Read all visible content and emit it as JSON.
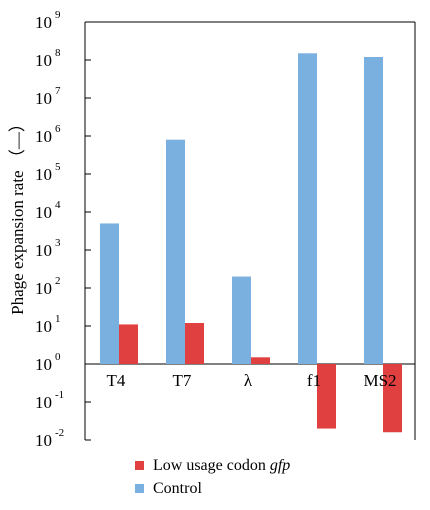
{
  "chart_data": {
    "type": "bar",
    "ylabel": "Phage expansion rate （—）",
    "yscale": "log10",
    "ylim": [
      0.01,
      1000000000
    ],
    "baseline": 1,
    "categories": [
      "T4",
      "T7",
      "λ",
      "f1",
      "MS2"
    ],
    "series": [
      {
        "name": "Control",
        "color": "#7ab0e0",
        "values": [
          5000,
          800000,
          200,
          150000000,
          120000000
        ]
      },
      {
        "name": "Low usage codon gfp",
        "color": "#e04040",
        "values": [
          11,
          12,
          1.5,
          0.02,
          0.016
        ]
      }
    ],
    "yticks": [
      {
        "base": "10",
        "exp": "9"
      },
      {
        "base": "10",
        "exp": "8"
      },
      {
        "base": "10",
        "exp": "7"
      },
      {
        "base": "10",
        "exp": "6"
      },
      {
        "base": "10",
        "exp": "5"
      },
      {
        "base": "10",
        "exp": "4"
      },
      {
        "base": "10",
        "exp": "3"
      },
      {
        "base": "10",
        "exp": "2"
      },
      {
        "base": "10",
        "exp": "1"
      },
      {
        "base": "10",
        "exp": "0"
      },
      {
        "base": "10",
        "exp": "-1"
      },
      {
        "base": "10",
        "exp": "-2"
      }
    ],
    "legend": {
      "placement": "bottom",
      "entries": [
        {
          "prefix": "Low usage codon ",
          "italic": "gfp",
          "color": "#e04040"
        },
        {
          "prefix": "Control",
          "italic": "",
          "color": "#7ab0e0"
        }
      ]
    },
    "grid": false
  }
}
